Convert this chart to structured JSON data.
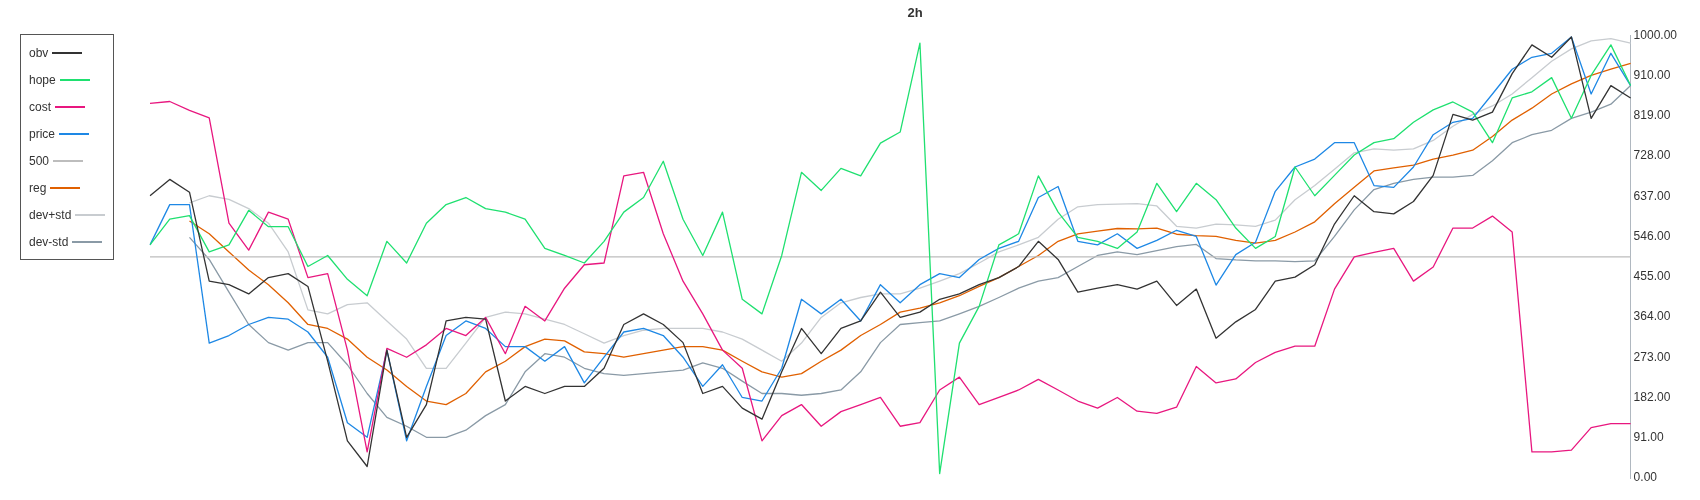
{
  "chart_data": {
    "type": "line",
    "title": "2h",
    "categories": [
      null,
      null,
      null,
      null,
      null,
      null,
      null,
      null,
      null,
      null,
      null,
      null,
      null,
      null,
      null,
      null,
      null,
      null,
      null,
      null,
      null,
      null,
      null,
      null,
      null,
      null,
      null,
      null,
      null,
      null,
      null,
      null,
      null,
      null,
      null,
      null,
      null,
      null,
      null,
      null,
      null,
      null,
      null,
      null,
      null,
      null,
      null,
      null,
      null,
      null,
      null,
      null,
      null,
      null,
      null,
      null,
      null,
      null,
      null,
      null,
      null,
      null,
      null,
      null,
      null,
      null,
      null,
      null,
      null,
      null,
      null,
      null,
      null,
      null,
      null,
      null
    ],
    "series": [
      {
        "name": "obv",
        "color": "#333333",
        "values": [
          638,
          675,
          646,
          445,
          437,
          416,
          453,
          462,
          433,
          264,
          84,
          26,
          289,
          92,
          166,
          355,
          363,
          359,
          174,
          207,
          191,
          207,
          207,
          248,
          347,
          371,
          347,
          306,
          191,
          207,
          158,
          133,
          240,
          338,
          281,
          338,
          355,
          420,
          363,
          375,
          404,
          416,
          437,
          453,
          478,
          535,
          494,
          420,
          429,
          437,
          427,
          445,
          390,
          427,
          316,
          353,
          381,
          445,
          454,
          482,
          574,
          638,
          602,
          597,
          625,
          684,
          822,
          809,
          827,
          914,
          979,
          951,
          997,
          813,
          887,
          859
        ]
      },
      {
        "name": "hope",
        "color": "#1fe070",
        "values": [
          527,
          585,
          593,
          511,
          527,
          605,
          568,
          568,
          478,
          503,
          449,
          412,
          535,
          486,
          576,
          618,
          634,
          609,
          601,
          585,
          519,
          503,
          486,
          535,
          601,
          634,
          716,
          585,
          503,
          601,
          404,
          371,
          503,
          691,
          650,
          700,
          683,
          757,
          782,
          983,
          10,
          305,
          388,
          527,
          552,
          683,
          601,
          544,
          535,
          519,
          556,
          666,
          602,
          666,
          629,
          565,
          519,
          546,
          703,
          638,
          684,
          730,
          758,
          767,
          804,
          832,
          850,
          827,
          758,
          859,
          873,
          905,
          813,
          910,
          979,
          887
        ]
      },
      {
        "name": "cost",
        "color": "#e8177f",
        "values": [
          847,
          851,
          831,
          814,
          576,
          515,
          601,
          585,
          453,
          462,
          289,
          59,
          293,
          273,
          301,
          338,
          322,
          363,
          281,
          388,
          355,
          429,
          482,
          486,
          683,
          691,
          552,
          445,
          371,
          289,
          248,
          84,
          141,
          166,
          117,
          150,
          166,
          182,
          117,
          125,
          199,
          228,
          166,
          182,
          199,
          223,
          199,
          174,
          158,
          182,
          151,
          146,
          160,
          252,
          215,
          224,
          261,
          284,
          298,
          298,
          427,
          500,
          510,
          519,
          445,
          477,
          565,
          565,
          592,
          556,
          59,
          59,
          63,
          114,
          123,
          123
        ]
      },
      {
        "name": "price",
        "color": "#1e88e5",
        "values": [
          527,
          618,
          618,
          305,
          322,
          347,
          363,
          359,
          330,
          273,
          125,
          92,
          289,
          84,
          207,
          322,
          355,
          338,
          297,
          297,
          264,
          297,
          215,
          273,
          330,
          338,
          322,
          273,
          207,
          256,
          182,
          174,
          248,
          404,
          371,
          404,
          355,
          437,
          396,
          437,
          462,
          453,
          494,
          519,
          535,
          634,
          659,
          535,
          527,
          552,
          519,
          537,
          560,
          546,
          436,
          505,
          533,
          648,
          703,
          721,
          758,
          758,
          661,
          657,
          703,
          776,
          804,
          813,
          868,
          924,
          951,
          960,
          997,
          868,
          960,
          887
        ]
      },
      {
        "name": "500",
        "color": "#bdbdbd",
        "values": [
          500,
          500,
          500,
          500,
          500,
          500,
          500,
          500,
          500,
          500,
          500,
          500,
          500,
          500,
          500,
          500,
          500,
          500,
          500,
          500,
          500,
          500,
          500,
          500,
          500,
          500,
          500,
          500,
          500,
          500,
          500,
          500,
          500,
          500,
          500,
          500,
          500,
          500,
          500,
          500,
          500,
          500,
          500,
          500,
          500,
          500,
          500,
          500,
          500,
          500,
          500,
          500,
          500,
          500,
          500,
          500,
          500,
          500,
          500,
          500,
          500,
          500,
          500,
          500,
          500,
          500,
          500,
          500,
          500,
          500,
          500,
          500,
          500,
          500,
          500,
          500
        ]
      },
      {
        "name": "reg",
        "color": "#e06000",
        "values": [
          null,
          null,
          581,
          552,
          511,
          470,
          437,
          396,
          347,
          338,
          314,
          273,
          244,
          207,
          174,
          166,
          191,
          240,
          264,
          297,
          314,
          310,
          285,
          281,
          273,
          281,
          289,
          297,
          297,
          289,
          264,
          240,
          228,
          236,
          264,
          289,
          322,
          347,
          375,
          384,
          396,
          412,
          433,
          453,
          478,
          503,
          535,
          552,
          558,
          564,
          563,
          565,
          551,
          548,
          546,
          537,
          531,
          537,
          556,
          579,
          620,
          657,
          694,
          701,
          707,
          721,
          730,
          741,
          772,
          809,
          836,
          868,
          891,
          910,
          924,
          937
        ]
      },
      {
        "name": "dev+std",
        "color": "#c8ccd0",
        "values": [
          null,
          null,
          622,
          638,
          630,
          609,
          576,
          511,
          380,
          371,
          392,
          396,
          355,
          314,
          248,
          248,
          305,
          363,
          375,
          371,
          359,
          347,
          326,
          305,
          322,
          334,
          338,
          338,
          338,
          330,
          314,
          289,
          264,
          305,
          363,
          396,
          408,
          416,
          416,
          429,
          445,
          462,
          486,
          511,
          527,
          544,
          585,
          613,
          618,
          619,
          620,
          615,
          569,
          565,
          574,
          572,
          569,
          583,
          629,
          661,
          698,
          735,
          744,
          741,
          744,
          763,
          795,
          822,
          841,
          868,
          905,
          942,
          970,
          988,
          993,
          983
        ]
      },
      {
        "name": "dev-std",
        "color": "#8a9aa6",
        "values": [
          null,
          null,
          544,
          494,
          420,
          347,
          306,
          289,
          306,
          306,
          256,
          191,
          137,
          117,
          92,
          92,
          108,
          141,
          166,
          240,
          281,
          273,
          248,
          236,
          232,
          236,
          240,
          244,
          260,
          248,
          219,
          191,
          191,
          187,
          191,
          199,
          240,
          306,
          347,
          351,
          355,
          371,
          388,
          408,
          429,
          445,
          453,
          478,
          503,
          511,
          505,
          514,
          523,
          528,
          496,
          493,
          491,
          491,
          489,
          491,
          546,
          606,
          652,
          666,
          675,
          680,
          680,
          684,
          717,
          758,
          776,
          786,
          813,
          827,
          845,
          887
        ]
      }
    ],
    "ylim": [
      0,
      1000
    ],
    "yticks": [
      {
        "value": 0,
        "label": "0.00"
      },
      {
        "value": 91,
        "label": "91.00"
      },
      {
        "value": 182,
        "label": "182.00"
      },
      {
        "value": 273,
        "label": "273.00"
      },
      {
        "value": 364,
        "label": "364.00"
      },
      {
        "value": 455,
        "label": "455.00"
      },
      {
        "value": 546,
        "label": "546.00"
      },
      {
        "value": 637,
        "label": "637.00"
      },
      {
        "value": 728,
        "label": "728.00"
      },
      {
        "value": 819,
        "label": "819.00"
      },
      {
        "value": 910,
        "label": "910.00"
      },
      {
        "value": 1000,
        "label": "1000.00"
      }
    ],
    "tick_labels": "y",
    "grid": false,
    "legend": "top left",
    "marker": "none",
    "line_style": "solid"
  }
}
